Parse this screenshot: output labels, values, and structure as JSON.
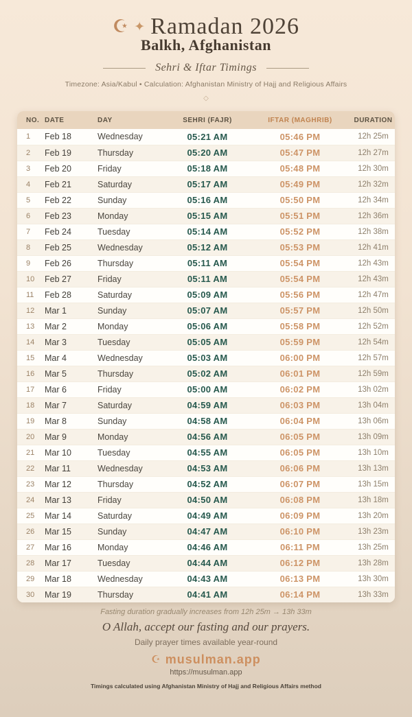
{
  "page": {
    "header": {
      "crescent_icon": "☪",
      "sparkle_icon": "✦",
      "title": "Ramadan 2026",
      "location": "Balkh, Afghanistan",
      "subtitle": "Sehri & Iftar Timings",
      "meta": "Timezone: Asia/Kabul • Calculation: Afghanistan Ministry of Hajj and Religious Affairs",
      "ornament": "◇"
    },
    "table": {
      "columns": [
        "NO.",
        "DATE",
        "DAY",
        "SEHRI (FAJR)",
        "IFTAR (MAGHRIB)",
        "DURATION"
      ],
      "rows": [
        {
          "no": "1",
          "date": "Feb 18",
          "day": "Wednesday",
          "sehri": "05:21 AM",
          "iftar": "05:46 PM",
          "duration": "12h 25m"
        },
        {
          "no": "2",
          "date": "Feb 19",
          "day": "Thursday",
          "sehri": "05:20 AM",
          "iftar": "05:47 PM",
          "duration": "12h 27m"
        },
        {
          "no": "3",
          "date": "Feb 20",
          "day": "Friday",
          "sehri": "05:18 AM",
          "iftar": "05:48 PM",
          "duration": "12h 30m"
        },
        {
          "no": "4",
          "date": "Feb 21",
          "day": "Saturday",
          "sehri": "05:17 AM",
          "iftar": "05:49 PM",
          "duration": "12h 32m"
        },
        {
          "no": "5",
          "date": "Feb 22",
          "day": "Sunday",
          "sehri": "05:16 AM",
          "iftar": "05:50 PM",
          "duration": "12h 34m"
        },
        {
          "no": "6",
          "date": "Feb 23",
          "day": "Monday",
          "sehri": "05:15 AM",
          "iftar": "05:51 PM",
          "duration": "12h 36m"
        },
        {
          "no": "7",
          "date": "Feb 24",
          "day": "Tuesday",
          "sehri": "05:14 AM",
          "iftar": "05:52 PM",
          "duration": "12h 38m"
        },
        {
          "no": "8",
          "date": "Feb 25",
          "day": "Wednesday",
          "sehri": "05:12 AM",
          "iftar": "05:53 PM",
          "duration": "12h 41m"
        },
        {
          "no": "9",
          "date": "Feb 26",
          "day": "Thursday",
          "sehri": "05:11 AM",
          "iftar": "05:54 PM",
          "duration": "12h 43m"
        },
        {
          "no": "10",
          "date": "Feb 27",
          "day": "Friday",
          "sehri": "05:11 AM",
          "iftar": "05:54 PM",
          "duration": "12h 43m"
        },
        {
          "no": "11",
          "date": "Feb 28",
          "day": "Saturday",
          "sehri": "05:09 AM",
          "iftar": "05:56 PM",
          "duration": "12h 47m"
        },
        {
          "no": "12",
          "date": "Mar 1",
          "day": "Sunday",
          "sehri": "05:07 AM",
          "iftar": "05:57 PM",
          "duration": "12h 50m"
        },
        {
          "no": "13",
          "date": "Mar 2",
          "day": "Monday",
          "sehri": "05:06 AM",
          "iftar": "05:58 PM",
          "duration": "12h 52m"
        },
        {
          "no": "14",
          "date": "Mar 3",
          "day": "Tuesday",
          "sehri": "05:05 AM",
          "iftar": "05:59 PM",
          "duration": "12h 54m"
        },
        {
          "no": "15",
          "date": "Mar 4",
          "day": "Wednesday",
          "sehri": "05:03 AM",
          "iftar": "06:00 PM",
          "duration": "12h 57m"
        },
        {
          "no": "16",
          "date": "Mar 5",
          "day": "Thursday",
          "sehri": "05:02 AM",
          "iftar": "06:01 PM",
          "duration": "12h 59m"
        },
        {
          "no": "17",
          "date": "Mar 6",
          "day": "Friday",
          "sehri": "05:00 AM",
          "iftar": "06:02 PM",
          "duration": "13h 02m"
        },
        {
          "no": "18",
          "date": "Mar 7",
          "day": "Saturday",
          "sehri": "04:59 AM",
          "iftar": "06:03 PM",
          "duration": "13h 04m"
        },
        {
          "no": "19",
          "date": "Mar 8",
          "day": "Sunday",
          "sehri": "04:58 AM",
          "iftar": "06:04 PM",
          "duration": "13h 06m"
        },
        {
          "no": "20",
          "date": "Mar 9",
          "day": "Monday",
          "sehri": "04:56 AM",
          "iftar": "06:05 PM",
          "duration": "13h 09m"
        },
        {
          "no": "21",
          "date": "Mar 10",
          "day": "Tuesday",
          "sehri": "04:55 AM",
          "iftar": "06:05 PM",
          "duration": "13h 10m"
        },
        {
          "no": "22",
          "date": "Mar 11",
          "day": "Wednesday",
          "sehri": "04:53 AM",
          "iftar": "06:06 PM",
          "duration": "13h 13m"
        },
        {
          "no": "23",
          "date": "Mar 12",
          "day": "Thursday",
          "sehri": "04:52 AM",
          "iftar": "06:07 PM",
          "duration": "13h 15m"
        },
        {
          "no": "24",
          "date": "Mar 13",
          "day": "Friday",
          "sehri": "04:50 AM",
          "iftar": "06:08 PM",
          "duration": "13h 18m"
        },
        {
          "no": "25",
          "date": "Mar 14",
          "day": "Saturday",
          "sehri": "04:49 AM",
          "iftar": "06:09 PM",
          "duration": "13h 20m"
        },
        {
          "no": "26",
          "date": "Mar 15",
          "day": "Sunday",
          "sehri": "04:47 AM",
          "iftar": "06:10 PM",
          "duration": "13h 23m"
        },
        {
          "no": "27",
          "date": "Mar 16",
          "day": "Monday",
          "sehri": "04:46 AM",
          "iftar": "06:11 PM",
          "duration": "13h 25m"
        },
        {
          "no": "28",
          "date": "Mar 17",
          "day": "Tuesday",
          "sehri": "04:44 AM",
          "iftar": "06:12 PM",
          "duration": "13h 28m"
        },
        {
          "no": "29",
          "date": "Mar 18",
          "day": "Wednesday",
          "sehri": "04:43 AM",
          "iftar": "06:13 PM",
          "duration": "13h 30m"
        },
        {
          "no": "30",
          "date": "Mar 19",
          "day": "Thursday",
          "sehri": "04:41 AM",
          "iftar": "06:14 PM",
          "duration": "13h 33m"
        }
      ]
    },
    "footer": {
      "duration_note": "Fasting duration gradually increases from 12h 25m → 13h 33m",
      "dua": "O Allah, accept our fasting and our prayers.",
      "availability": "Daily prayer times available year-round",
      "brand_icon": "☪",
      "brand_name": "musulman.app",
      "brand_url": "https://musulman.app",
      "method_note": "Timings calculated using Afghanistan Ministry of Hajj and Religious Affairs method"
    },
    "colors": {
      "background_top": "#F7E9D9",
      "background_bottom": "#DDCEBC",
      "accent_copper": "#CD9467",
      "accent_teal": "#27594E",
      "header_row_bg": "#E9D5BE",
      "iftar_header_text": "#C08350",
      "title_brown": "#4E4236",
      "card_bg": "#FFFEFB",
      "alt_row_bg": "#F8F2E8"
    }
  }
}
